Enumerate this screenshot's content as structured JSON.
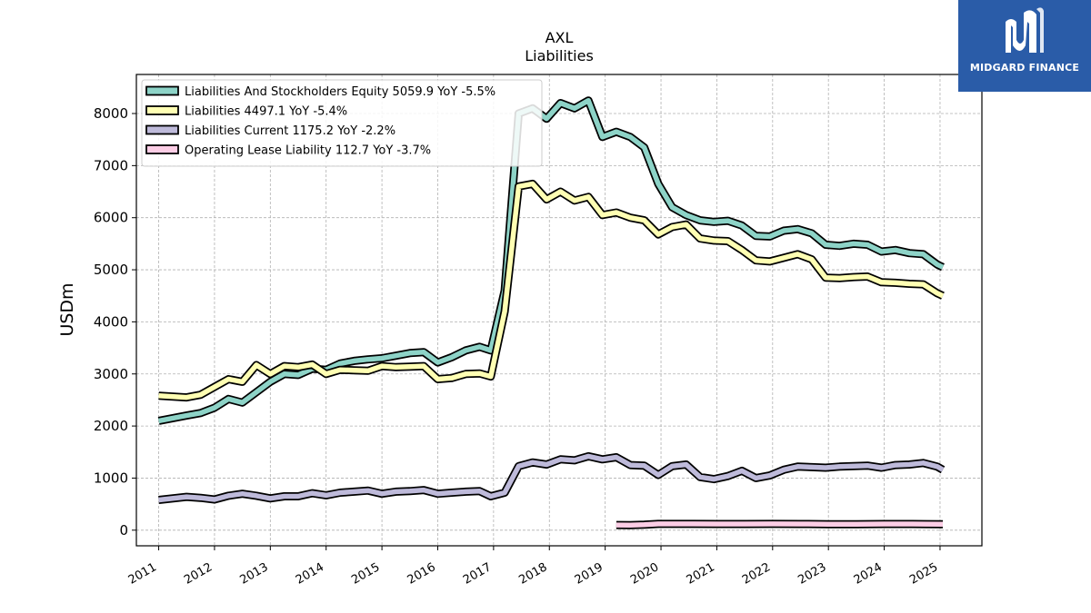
{
  "logo": {
    "text": "MIDGARD FINANCE",
    "icon": "midgard-logo-icon",
    "bg_color": "#2a5ca8"
  },
  "chart_data": {
    "type": "line",
    "title": "AXL",
    "subtitle": "Liabilities",
    "xlabel": "",
    "ylabel": "USDm",
    "xlim": [
      2010.6,
      2025.75
    ],
    "ylim": [
      -300,
      8750
    ],
    "yticks": [
      0,
      1000,
      2000,
      3000,
      4000,
      5000,
      6000,
      7000,
      8000
    ],
    "xticks": [
      2011,
      2012,
      2013,
      2014,
      2015,
      2016,
      2017,
      2018,
      2019,
      2020,
      2021,
      2022,
      2023,
      2024,
      2025
    ],
    "xtick_labels": [
      "2011",
      "2012",
      "2013",
      "2014",
      "2015",
      "2016",
      "2017",
      "2018",
      "2019",
      "2020",
      "2021",
      "2022",
      "2023",
      "2024",
      "2025"
    ],
    "grid": true,
    "legend_position": "top-left",
    "series": [
      {
        "name": "Liabilities And Stockholders Equity",
        "legend": "Liabilities And Stockholders Equity  5059.9 YoY -5.5%",
        "color": "#8dd3c7",
        "x": [
          2011.0,
          2011.5,
          2011.75,
          2012.0,
          2012.25,
          2012.5,
          2012.75,
          2013.0,
          2013.25,
          2013.5,
          2013.75,
          2014.0,
          2014.25,
          2014.5,
          2014.75,
          2015.0,
          2015.25,
          2015.5,
          2015.75,
          2016.0,
          2016.25,
          2016.5,
          2016.75,
          2016.95,
          2017.2,
          2017.45,
          2017.7,
          2017.95,
          2018.2,
          2018.45,
          2018.7,
          2018.95,
          2019.2,
          2019.45,
          2019.7,
          2019.95,
          2020.2,
          2020.45,
          2020.7,
          2020.95,
          2021.2,
          2021.45,
          2021.7,
          2021.95,
          2022.2,
          2022.45,
          2022.7,
          2022.95,
          2023.2,
          2023.45,
          2023.7,
          2023.95,
          2024.2,
          2024.45,
          2024.7,
          2024.95,
          2025.05
        ],
        "y": [
          2100,
          2200,
          2250,
          2350,
          2520,
          2450,
          2650,
          2850,
          3000,
          2980,
          3100,
          3080,
          3200,
          3250,
          3280,
          3300,
          3350,
          3400,
          3420,
          3220,
          3320,
          3450,
          3520,
          3450,
          4600,
          8000,
          8100,
          7900,
          8200,
          8100,
          8250,
          7550,
          7650,
          7550,
          7350,
          6650,
          6200,
          6050,
          5950,
          5920,
          5940,
          5850,
          5650,
          5640,
          5750,
          5780,
          5700,
          5480,
          5460,
          5500,
          5480,
          5350,
          5380,
          5320,
          5300,
          5100,
          5050
        ]
      },
      {
        "name": "Liabilities",
        "legend": "Liabilities  4497.1 YoY -5.4%",
        "color": "#ffffb3",
        "x": [
          2011.0,
          2011.5,
          2011.75,
          2012.0,
          2012.25,
          2012.5,
          2012.75,
          2013.0,
          2013.25,
          2013.5,
          2013.75,
          2014.0,
          2014.25,
          2014.5,
          2014.75,
          2015.0,
          2015.25,
          2015.5,
          2015.75,
          2016.0,
          2016.25,
          2016.5,
          2016.75,
          2016.95,
          2017.2,
          2017.45,
          2017.7,
          2017.95,
          2018.2,
          2018.45,
          2018.7,
          2018.95,
          2019.2,
          2019.45,
          2019.7,
          2019.95,
          2020.2,
          2020.45,
          2020.7,
          2020.95,
          2021.2,
          2021.45,
          2021.7,
          2021.95,
          2022.2,
          2022.45,
          2022.7,
          2022.95,
          2023.2,
          2023.45,
          2023.7,
          2023.95,
          2024.2,
          2024.45,
          2024.7,
          2024.95,
          2025.05
        ],
        "y": [
          2580,
          2550,
          2600,
          2750,
          2900,
          2850,
          3170,
          3000,
          3150,
          3130,
          3180,
          3000,
          3080,
          3070,
          3060,
          3150,
          3130,
          3140,
          3150,
          2900,
          2920,
          3000,
          3010,
          2950,
          4200,
          6600,
          6650,
          6350,
          6500,
          6330,
          6400,
          6050,
          6100,
          6000,
          5950,
          5680,
          5820,
          5870,
          5600,
          5560,
          5550,
          5380,
          5180,
          5160,
          5230,
          5300,
          5200,
          4850,
          4840,
          4860,
          4870,
          4760,
          4750,
          4730,
          4720,
          4550,
          4500
        ]
      },
      {
        "name": "Liabilities Current",
        "legend": "Liabilities Current  1175.2 YoY -2.2%",
        "color": "#bebada",
        "x": [
          2011.0,
          2011.5,
          2011.75,
          2012.0,
          2012.25,
          2012.5,
          2012.75,
          2013.0,
          2013.25,
          2013.5,
          2013.75,
          2014.0,
          2014.25,
          2014.5,
          2014.75,
          2015.0,
          2015.25,
          2015.5,
          2015.75,
          2016.0,
          2016.25,
          2016.5,
          2016.75,
          2016.95,
          2017.2,
          2017.45,
          2017.7,
          2017.95,
          2018.2,
          2018.45,
          2018.7,
          2018.95,
          2019.2,
          2019.45,
          2019.7,
          2019.95,
          2020.2,
          2020.45,
          2020.7,
          2020.95,
          2021.2,
          2021.45,
          2021.7,
          2021.95,
          2022.2,
          2022.45,
          2022.7,
          2022.95,
          2023.2,
          2023.45,
          2023.7,
          2023.95,
          2024.2,
          2024.45,
          2024.7,
          2024.95,
          2025.05
        ],
        "y": [
          580,
          640,
          620,
          590,
          660,
          700,
          660,
          610,
          650,
          650,
          710,
          670,
          720,
          740,
          760,
          700,
          740,
          750,
          770,
          700,
          720,
          740,
          750,
          650,
          720,
          1230,
          1300,
          1260,
          1360,
          1340,
          1420,
          1360,
          1400,
          1250,
          1240,
          1060,
          1230,
          1260,
          1020,
          980,
          1040,
          1140,
          1000,
          1050,
          1160,
          1220,
          1210,
          1200,
          1220,
          1230,
          1240,
          1200,
          1250,
          1260,
          1290,
          1220,
          1160
        ]
      },
      {
        "name": "Operating Lease Liability",
        "legend": "Operating Lease Liability  112.7 YoY -3.7%",
        "color": "#fccde5",
        "x": [
          2019.2,
          2019.45,
          2019.7,
          2019.95,
          2020.5,
          2021.0,
          2021.5,
          2022.0,
          2022.5,
          2023.0,
          2023.5,
          2024.0,
          2024.5,
          2025.05
        ],
        "y": [
          100,
          95,
          105,
          120,
          120,
          118,
          118,
          120,
          118,
          115,
          115,
          118,
          118,
          113
        ]
      }
    ]
  }
}
